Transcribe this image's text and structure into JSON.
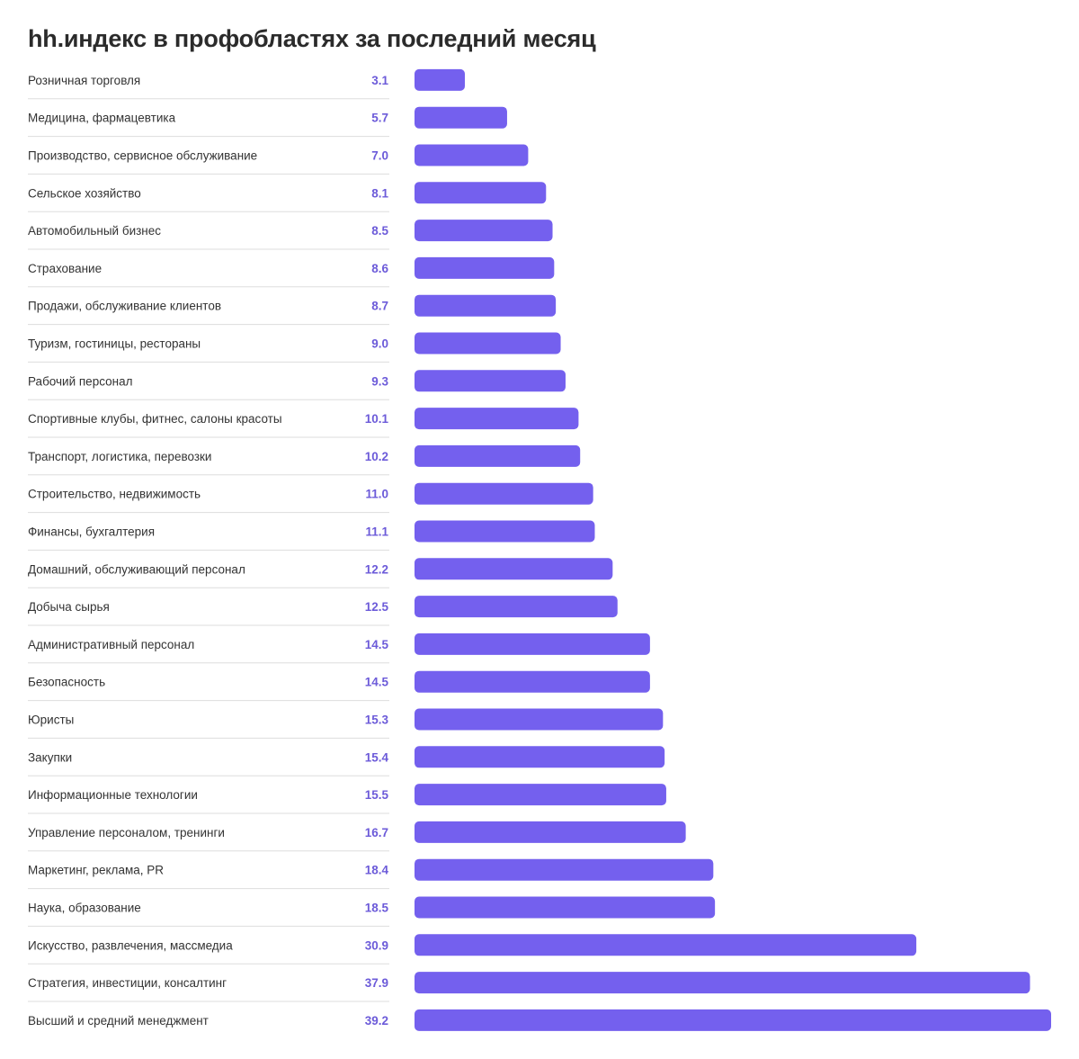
{
  "colors": {
    "bar": "#7460ee",
    "value": "#6c5bd9"
  },
  "chart_data": {
    "type": "bar",
    "orientation": "horizontal",
    "title": "hh.индекс в профобластях за последний месяц",
    "categories": [
      "Розничная торговля",
      "Медицина, фармацевтика",
      "Производство, сервисное обслуживание",
      "Сельское хозяйство",
      "Автомобильный бизнес",
      "Страхование",
      "Продажи, обслуживание клиентов",
      "Туризм, гостиницы, рестораны",
      "Рабочий персонал",
      "Спортивные клубы, фитнес, салоны красоты",
      "Транспорт, логистика, перевозки",
      "Строительство, недвижимость",
      "Финансы, бухгалтерия",
      "Домашний, обслуживающий персонал",
      "Добыча сырья",
      "Административный персонал",
      "Безопасность",
      "Юристы",
      "Закупки",
      "Информационные технологии",
      "Управление персоналом, тренинги",
      "Маркетинг, реклама, PR",
      "Наука, образование",
      "Искусство, развлечения, массмедиа",
      "Стратегия, инвестиции, консалтинг",
      "Высший и средний менеджмент"
    ],
    "value_labels": [
      "3.1",
      "5.7",
      "7.0",
      "8.1",
      "8.5",
      "8.6",
      "8.7",
      "9.0",
      "9.3",
      "10.1",
      "10.2",
      "11.0",
      "11.1",
      "12.2",
      "12.5",
      "14.5",
      "14.5",
      "15.3",
      "15.4",
      "15.5",
      "16.7",
      "18.4",
      "18.5",
      "30.9",
      "37.9",
      "39.2"
    ],
    "values": [
      3.1,
      5.7,
      7.0,
      8.1,
      8.5,
      8.6,
      8.7,
      9.0,
      9.3,
      10.1,
      10.2,
      11.0,
      11.1,
      12.2,
      12.5,
      14.5,
      14.5,
      15.3,
      15.4,
      15.5,
      16.7,
      18.4,
      18.5,
      30.9,
      37.9,
      39.2
    ],
    "xlim": [
      0,
      39.2
    ],
    "grid": false,
    "legend": "none"
  }
}
